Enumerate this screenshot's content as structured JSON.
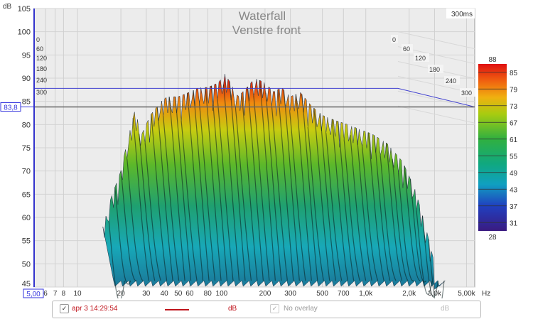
{
  "chart_data": {
    "type": "waterfall",
    "title": "Waterfall",
    "subtitle": "Venstre front",
    "time_span_label": "300ms",
    "ylabel": "dB",
    "xlabel": "Hz",
    "ylim": [
      45,
      105
    ],
    "xlim": [
      5,
      5700
    ],
    "y_ticks": [
      105,
      100,
      95,
      90,
      85,
      80,
      75,
      70,
      65,
      60,
      55,
      50,
      45
    ],
    "x_ticks": [
      {
        "v": 6,
        "l": "6"
      },
      {
        "v": 7,
        "l": "7"
      },
      {
        "v": 8,
        "l": "8"
      },
      {
        "v": 10,
        "l": "10"
      },
      {
        "v": 20,
        "l": "20"
      },
      {
        "v": 30,
        "l": "30"
      },
      {
        "v": 40,
        "l": "40"
      },
      {
        "v": 50,
        "l": "50"
      },
      {
        "v": 60,
        "l": "60"
      },
      {
        "v": 80,
        "l": "80"
      },
      {
        "v": 100,
        "l": "100"
      },
      {
        "v": 200,
        "l": "200"
      },
      {
        "v": 300,
        "l": "300"
      },
      {
        "v": 500,
        "l": "500"
      },
      {
        "v": 700,
        "l": "700"
      },
      {
        "v": 1000,
        "l": "1,0k"
      },
      {
        "v": 2000,
        "l": "2,0k"
      },
      {
        "v": 3000,
        "l": "3,0k"
      },
      {
        "v": 5000,
        "l": "5,00k"
      }
    ],
    "x_cursor_label": "5,00",
    "y_cursor_label": "83,8",
    "y_cursor_value": 83.8,
    "limit_line_db": 87.8,
    "time_slices_ms": [
      "0",
      "60",
      "120",
      "180",
      "240",
      "300"
    ],
    "colorbar": {
      "max": "88",
      "min": "28",
      "ticks": [
        "85",
        "79",
        "73",
        "67",
        "61",
        "55",
        "49",
        "43",
        "37",
        "31"
      ]
    },
    "envelope": [
      [
        15,
        58
      ],
      [
        17,
        64
      ],
      [
        20,
        70
      ],
      [
        22,
        76
      ],
      [
        25,
        83
      ],
      [
        28,
        78
      ],
      [
        32,
        82
      ],
      [
        38,
        85
      ],
      [
        42,
        86
      ],
      [
        50,
        86
      ],
      [
        60,
        87
      ],
      [
        70,
        88
      ],
      [
        80,
        88
      ],
      [
        95,
        89
      ],
      [
        105,
        91
      ],
      [
        115,
        89
      ],
      [
        130,
        86
      ],
      [
        150,
        88
      ],
      [
        170,
        90
      ],
      [
        200,
        89
      ],
      [
        230,
        87
      ],
      [
        260,
        88
      ],
      [
        300,
        86
      ],
      [
        350,
        87
      ],
      [
        420,
        84
      ],
      [
        500,
        82
      ],
      [
        600,
        81
      ],
      [
        750,
        80
      ],
      [
        900,
        79
      ],
      [
        1100,
        78
      ],
      [
        1400,
        76
      ],
      [
        1800,
        72
      ],
      [
        2200,
        66
      ],
      [
        2600,
        58
      ],
      [
        3000,
        50
      ]
    ]
  },
  "legend": {
    "series_label": "apr 3 14:29:54",
    "series_unit": "dB",
    "overlay_label": "No overlay",
    "overlay_unit": "dB",
    "series_color": "#c0141c"
  }
}
